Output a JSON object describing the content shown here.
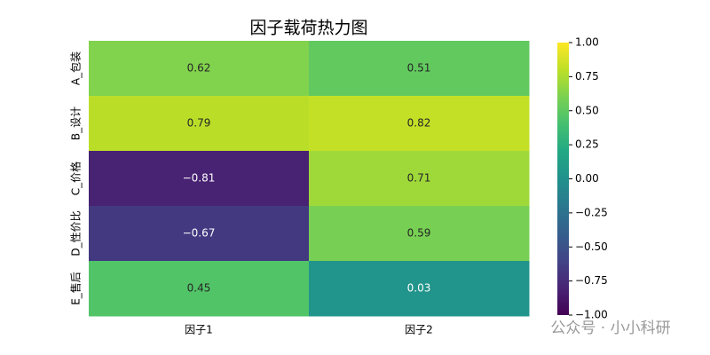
{
  "chart_data": {
    "type": "heatmap",
    "title": "因子载荷热力图",
    "x_categories": [
      "因子1",
      "因子2"
    ],
    "y_categories": [
      "A_包装",
      "B_设计",
      "C_价格",
      "D_性价比",
      "E_售后"
    ],
    "values": [
      [
        0.62,
        0.51
      ],
      [
        0.79,
        0.82
      ],
      [
        -0.81,
        0.71
      ],
      [
        -0.67,
        0.59
      ],
      [
        0.45,
        0.03
      ]
    ],
    "value_labels": [
      [
        "0.62",
        "0.51"
      ],
      [
        "0.79",
        "0.82"
      ],
      [
        "−0.81",
        "0.71"
      ],
      [
        "−0.67",
        "0.59"
      ],
      [
        "0.45",
        "0.03"
      ]
    ],
    "colormap": "viridis",
    "zlim": [
      -1,
      1
    ],
    "zticks": [
      {
        "value": 1,
        "label": "1.00"
      },
      0.75,
      {
        "value": 0.5,
        "label": "0.50"
      },
      0.25,
      {
        "value": 0,
        "label": "0.00"
      },
      {
        "value": -0.25,
        "label": "−0.25"
      },
      {
        "value": -0.5,
        "label": "−0.50"
      },
      {
        "value": -0.75,
        "label": "−0.75"
      },
      {
        "value": -1,
        "label": "−1.00"
      }
    ],
    "watermark": "公众号 · 小小科研"
  }
}
